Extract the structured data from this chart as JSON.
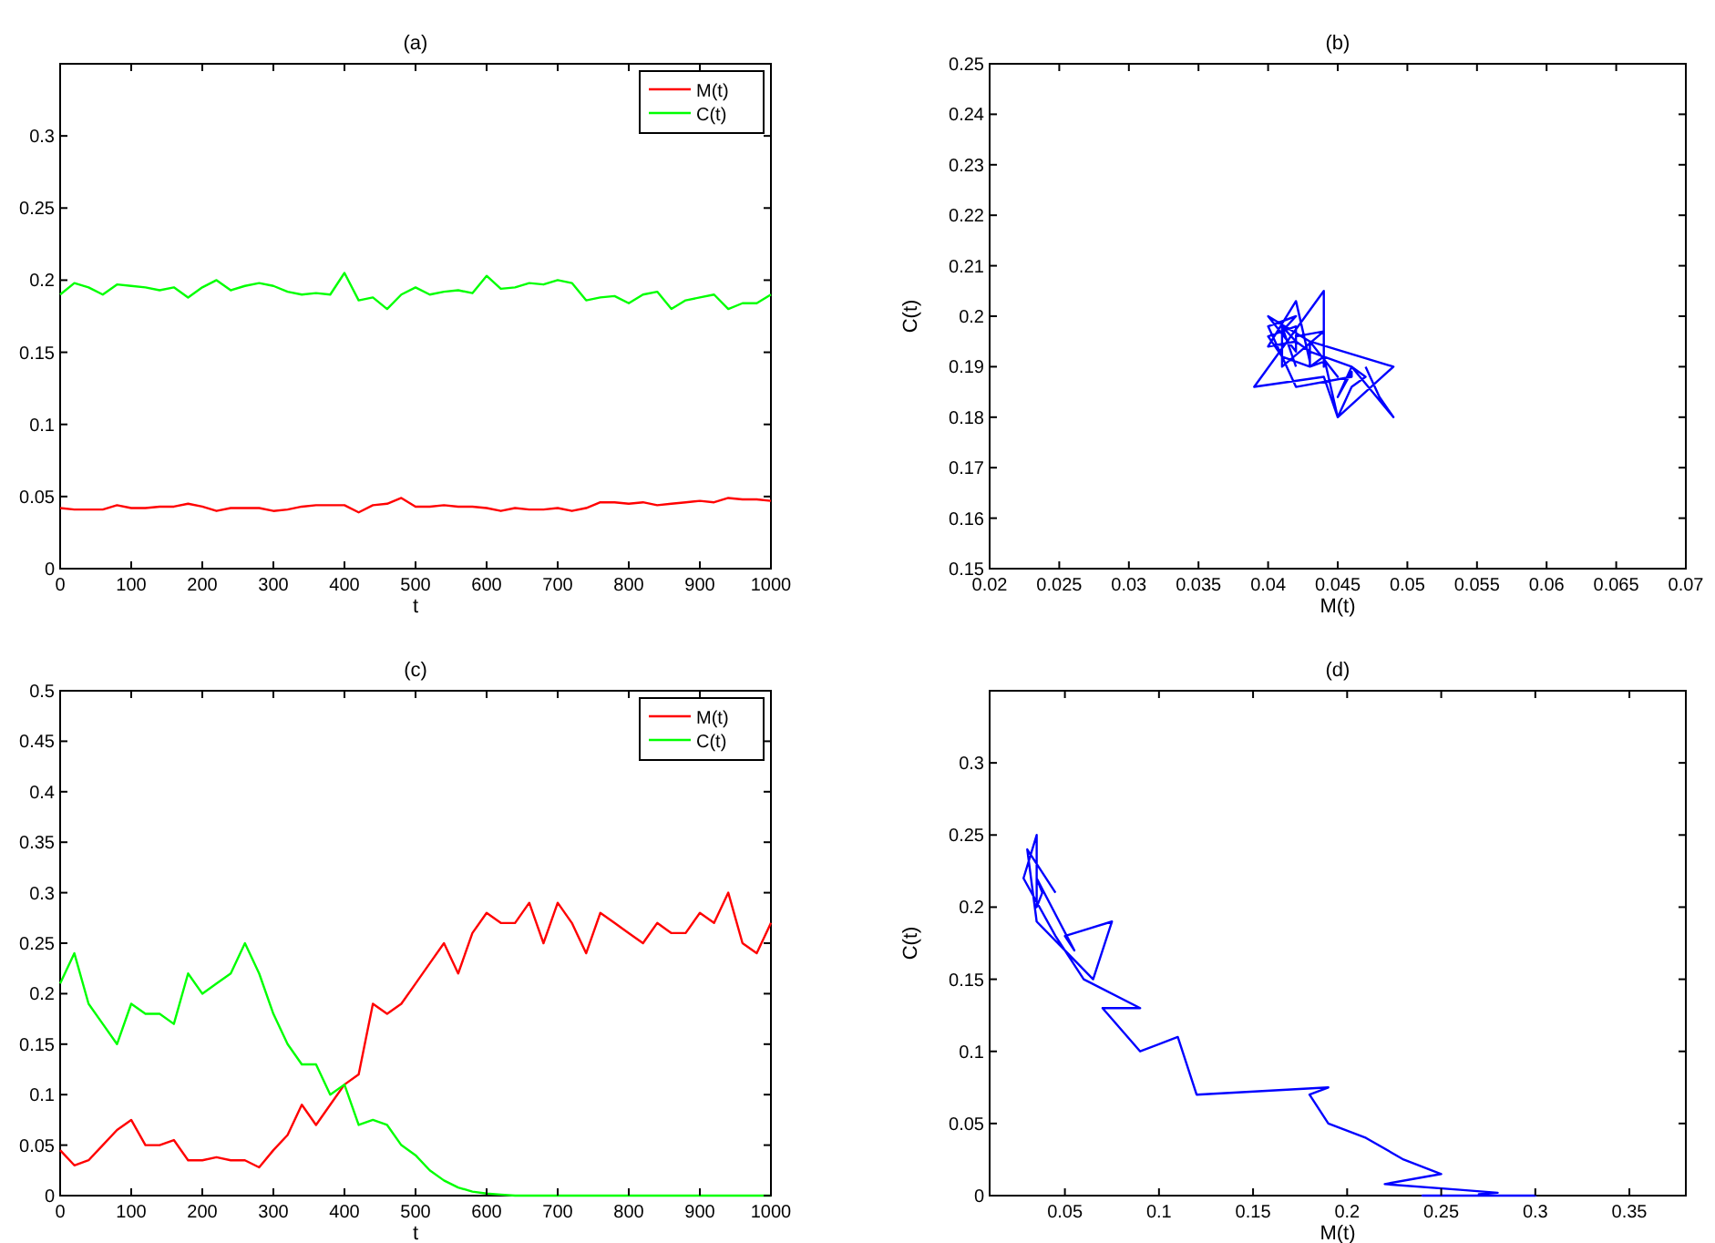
{
  "chart_data": [
    {
      "type": "line",
      "title": "(a)",
      "xlabel": "t",
      "xlim": [
        0,
        1000
      ],
      "ylim": [
        0,
        0.35
      ],
      "xticks": [
        0,
        100,
        200,
        300,
        400,
        500,
        600,
        700,
        800,
        900,
        1000
      ],
      "yticks": [
        0,
        0.05,
        0.1,
        0.15,
        0.2,
        0.25,
        0.3
      ],
      "legend": "top right",
      "x": [
        0,
        20,
        40,
        60,
        80,
        100,
        120,
        140,
        160,
        180,
        200,
        220,
        240,
        260,
        280,
        300,
        320,
        340,
        360,
        380,
        400,
        420,
        440,
        460,
        480,
        500,
        520,
        540,
        560,
        580,
        600,
        620,
        640,
        660,
        680,
        700,
        720,
        740,
        760,
        780,
        800,
        820,
        840,
        860,
        880,
        900,
        920,
        940,
        960,
        980,
        1000
      ],
      "series": [
        {
          "name": "M(t)",
          "color": "#ff0000",
          "values": [
            0.042,
            0.041,
            0.041,
            0.041,
            0.044,
            0.042,
            0.042,
            0.043,
            0.043,
            0.045,
            0.043,
            0.04,
            0.042,
            0.042,
            0.042,
            0.04,
            0.041,
            0.043,
            0.044,
            0.044,
            0.044,
            0.039,
            0.044,
            0.045,
            0.049,
            0.043,
            0.043,
            0.044,
            0.043,
            0.043,
            0.042,
            0.04,
            0.042,
            0.041,
            0.041,
            0.042,
            0.04,
            0.042,
            0.046,
            0.046,
            0.045,
            0.046,
            0.044,
            0.045,
            0.046,
            0.047,
            0.046,
            0.049,
            0.048,
            0.048,
            0.047
          ]
        },
        {
          "name": "C(t)",
          "color": "#00ff00",
          "values": [
            0.19,
            0.198,
            0.195,
            0.19,
            0.197,
            0.196,
            0.195,
            0.193,
            0.195,
            0.188,
            0.195,
            0.2,
            0.193,
            0.196,
            0.198,
            0.196,
            0.192,
            0.19,
            0.191,
            0.19,
            0.205,
            0.186,
            0.188,
            0.18,
            0.19,
            0.195,
            0.19,
            0.192,
            0.193,
            0.191,
            0.203,
            0.194,
            0.195,
            0.198,
            0.197,
            0.2,
            0.198,
            0.186,
            0.188,
            0.189,
            0.184,
            0.19,
            0.192,
            0.18,
            0.186,
            0.188,
            0.19,
            0.18,
            0.184,
            0.184,
            0.19
          ]
        }
      ]
    },
    {
      "type": "line",
      "title": "(b)",
      "xlabel": "M(t)",
      "ylabel": "C(t)",
      "xlim": [
        0.02,
        0.07
      ],
      "ylim": [
        0.15,
        0.25
      ],
      "xticks": [
        0.02,
        0.025,
        0.03,
        0.035,
        0.04,
        0.045,
        0.05,
        0.055,
        0.06,
        0.065,
        0.07
      ],
      "yticks": [
        0.15,
        0.16,
        0.17,
        0.18,
        0.19,
        0.2,
        0.21,
        0.22,
        0.23,
        0.24,
        0.25
      ],
      "series": [
        {
          "color": "#0000ff",
          "x": [
            0.042,
            0.041,
            0.041,
            0.041,
            0.044,
            0.042,
            0.042,
            0.043,
            0.043,
            0.045,
            0.043,
            0.04,
            0.042,
            0.042,
            0.042,
            0.04,
            0.041,
            0.043,
            0.044,
            0.044,
            0.044,
            0.039,
            0.044,
            0.045,
            0.049,
            0.043,
            0.043,
            0.044,
            0.043,
            0.043,
            0.042,
            0.04,
            0.042,
            0.041,
            0.041,
            0.042,
            0.04,
            0.042,
            0.046,
            0.046,
            0.045,
            0.046,
            0.044,
            0.045,
            0.046,
            0.047,
            0.046,
            0.049,
            0.048,
            0.048,
            0.047
          ],
          "values": [
            0.19,
            0.198,
            0.195,
            0.19,
            0.197,
            0.196,
            0.195,
            0.193,
            0.195,
            0.188,
            0.195,
            0.2,
            0.193,
            0.196,
            0.198,
            0.196,
            0.192,
            0.19,
            0.191,
            0.19,
            0.205,
            0.186,
            0.188,
            0.18,
            0.19,
            0.195,
            0.19,
            0.192,
            0.193,
            0.191,
            0.203,
            0.194,
            0.195,
            0.198,
            0.197,
            0.2,
            0.198,
            0.186,
            0.188,
            0.189,
            0.184,
            0.19,
            0.192,
            0.18,
            0.186,
            0.188,
            0.19,
            0.18,
            0.184,
            0.184,
            0.19
          ]
        }
      ]
    },
    {
      "type": "line",
      "title": "(c)",
      "xlabel": "t",
      "xlim": [
        0,
        1000
      ],
      "ylim": [
        0,
        0.5
      ],
      "xticks": [
        0,
        100,
        200,
        300,
        400,
        500,
        600,
        700,
        800,
        900,
        1000
      ],
      "yticks": [
        0,
        0.05,
        0.1,
        0.15,
        0.2,
        0.25,
        0.3,
        0.35,
        0.4,
        0.45,
        0.5
      ],
      "legend": "top right",
      "x": [
        0,
        20,
        40,
        60,
        80,
        100,
        120,
        140,
        160,
        180,
        200,
        220,
        240,
        260,
        280,
        300,
        320,
        340,
        360,
        380,
        400,
        420,
        440,
        460,
        480,
        500,
        520,
        540,
        560,
        580,
        600,
        620,
        640,
        660,
        680,
        700,
        720,
        740,
        760,
        780,
        800,
        820,
        840,
        860,
        880,
        900,
        920,
        940,
        960,
        980,
        1000
      ],
      "series": [
        {
          "name": "M(t)",
          "color": "#ff0000",
          "values": [
            0.045,
            0.03,
            0.035,
            0.05,
            0.065,
            0.075,
            0.05,
            0.05,
            0.055,
            0.035,
            0.035,
            0.038,
            0.035,
            0.035,
            0.028,
            0.045,
            0.06,
            0.09,
            0.07,
            0.09,
            0.11,
            0.12,
            0.19,
            0.18,
            0.19,
            0.21,
            0.23,
            0.25,
            0.22,
            0.26,
            0.28,
            0.27,
            0.27,
            0.29,
            0.25,
            0.29,
            0.27,
            0.24,
            0.28,
            0.27,
            0.26,
            0.25,
            0.27,
            0.26,
            0.26,
            0.28,
            0.27,
            0.3,
            0.25,
            0.24,
            0.27
          ]
        },
        {
          "name": "C(t)",
          "color": "#00ff00",
          "values": [
            0.21,
            0.24,
            0.19,
            0.17,
            0.15,
            0.19,
            0.18,
            0.18,
            0.17,
            0.22,
            0.2,
            0.21,
            0.22,
            0.25,
            0.22,
            0.18,
            0.15,
            0.13,
            0.13,
            0.1,
            0.11,
            0.07,
            0.075,
            0.07,
            0.05,
            0.04,
            0.025,
            0.015,
            0.008,
            0.004,
            0.002,
            0.001,
            0,
            0,
            0,
            0,
            0,
            0,
            0,
            0,
            0,
            0,
            0,
            0,
            0,
            0,
            0,
            0,
            0,
            0,
            0
          ]
        }
      ]
    },
    {
      "type": "line",
      "title": "(d)",
      "xlabel": "M(t)",
      "ylabel": "C(t)",
      "xlim": [
        0.01,
        0.38
      ],
      "ylim": [
        0,
        0.35
      ],
      "xticks": [
        0.05,
        0.1,
        0.15,
        0.2,
        0.25,
        0.3,
        0.35
      ],
      "yticks": [
        0,
        0.05,
        0.1,
        0.15,
        0.2,
        0.25,
        0.3
      ],
      "series": [
        {
          "color": "#0000ff",
          "x": [
            0.045,
            0.03,
            0.035,
            0.05,
            0.065,
            0.075,
            0.05,
            0.05,
            0.055,
            0.035,
            0.035,
            0.038,
            0.035,
            0.035,
            0.028,
            0.045,
            0.06,
            0.09,
            0.07,
            0.09,
            0.11,
            0.12,
            0.19,
            0.18,
            0.19,
            0.21,
            0.23,
            0.25,
            0.22,
            0.26,
            0.28,
            0.27,
            0.27,
            0.29,
            0.25,
            0.29,
            0.27,
            0.24,
            0.28,
            0.27,
            0.26,
            0.25,
            0.27,
            0.26,
            0.26,
            0.28,
            0.27,
            0.3,
            0.25,
            0.24,
            0.27
          ],
          "values": [
            0.21,
            0.24,
            0.19,
            0.17,
            0.15,
            0.19,
            0.18,
            0.18,
            0.17,
            0.22,
            0.2,
            0.21,
            0.22,
            0.25,
            0.22,
            0.18,
            0.15,
            0.13,
            0.13,
            0.1,
            0.11,
            0.07,
            0.075,
            0.07,
            0.05,
            0.04,
            0.025,
            0.015,
            0.008,
            0.004,
            0.002,
            0.001,
            0,
            0,
            0,
            0,
            0,
            0,
            0,
            0,
            0,
            0,
            0,
            0,
            0,
            0,
            0,
            0,
            0,
            0,
            0
          ]
        }
      ]
    }
  ]
}
